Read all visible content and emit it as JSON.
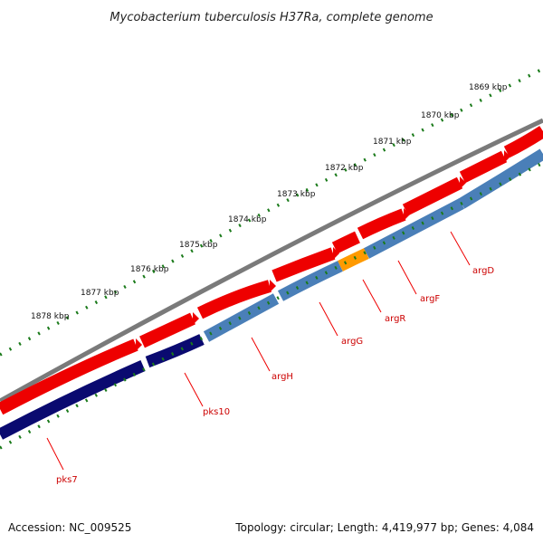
{
  "title": "Mycobacterium tuberculosis H37Ra, complete genome",
  "footer": {
    "accession": "Accession: NC_009525",
    "summary": "Topology: circular; Length: 4,419,977 bp; Genes: 4,084"
  },
  "scale_labels": [
    "1869 kbp",
    "1870 kbp",
    "1871 kbp",
    "1872 kbp",
    "1873 kbp",
    "1874 kbp",
    "1875 kbp",
    "1876 kbp",
    "1877 kbp",
    "1878 kbp"
  ],
  "genes": [
    "argD",
    "argF",
    "argR",
    "argG",
    "argH",
    "pks10",
    "pks7"
  ],
  "colors": {
    "backbone": "#7a7a7a",
    "forward_gene": "#ee0000",
    "reverse_gene_pks": "#0a0a70",
    "reverse_gene_arg": "#4a7fb8",
    "regulator_gene": "#ff9a00",
    "tick": "#1a7a1a",
    "label": "#cc0000"
  }
}
